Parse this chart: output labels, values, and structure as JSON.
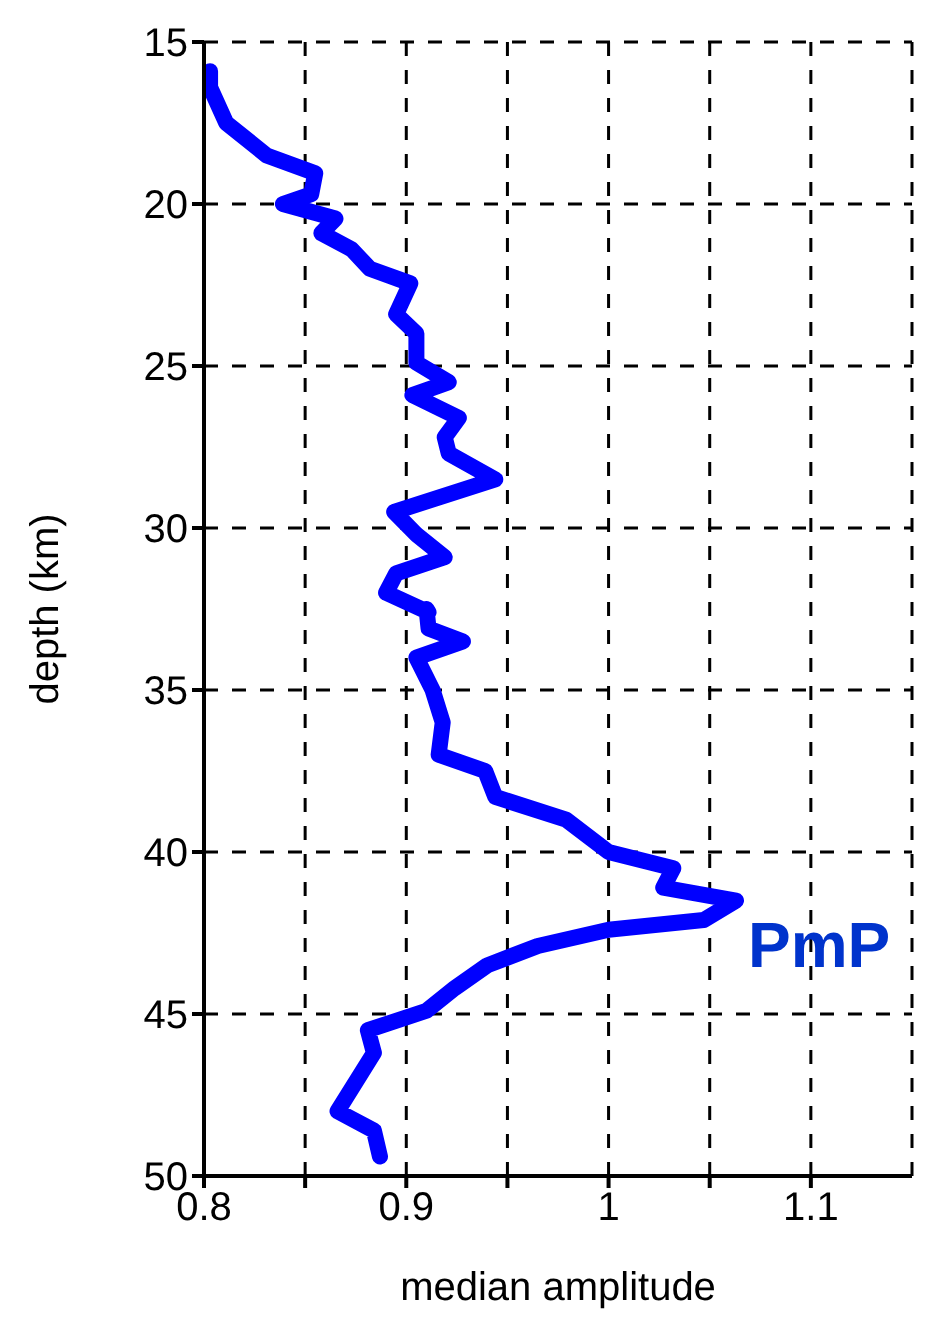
{
  "chart_data": {
    "type": "line",
    "xlabel": "median amplitude",
    "ylabel": "depth (km)",
    "xlim": [
      0.8,
      1.15
    ],
    "xticks": [
      0.8,
      {
        "value": 0.85,
        "label": null
      },
      0.9,
      {
        "value": 0.95,
        "label": null
      },
      1,
      {
        "value": 1.05,
        "label": null
      },
      1.1
    ],
    "ylim": [
      50,
      15
    ],
    "yticks": [
      15,
      20,
      25,
      30,
      35,
      40,
      45,
      50
    ],
    "grid": true,
    "line_style": "solid",
    "marker": "none",
    "annotations": [
      {
        "text": "PmP",
        "x": 1.063,
        "y": 41.5
      }
    ],
    "series": [
      {
        "color": "#0000ff",
        "x": [
          0.803,
          0.803,
          0.811,
          0.831,
          0.855,
          0.853,
          0.839,
          0.865,
          0.858,
          0.873,
          0.882,
          0.902,
          0.895,
          0.905,
          0.905,
          0.921,
          0.903,
          0.926,
          0.919,
          0.921,
          0.944,
          0.894,
          0.905,
          0.919,
          0.895,
          0.89,
          0.911,
          0.91,
          0.911,
          0.928,
          0.905,
          0.913,
          0.918,
          0.916,
          0.939,
          0.944,
          0.979,
          1.0,
          1.032,
          1.027,
          1.063,
          1.047,
          1.0,
          0.965,
          0.94,
          0.924,
          0.91,
          0.881,
          0.884,
          0.866,
          0.884,
          0.887
        ],
        "values": [
          15.9,
          16.4,
          17.5,
          18.5,
          19.05,
          19.7,
          20.0,
          20.45,
          20.9,
          21.4,
          22.0,
          22.45,
          23.4,
          24.0,
          24.9,
          25.5,
          25.9,
          26.6,
          27.2,
          27.7,
          28.5,
          29.5,
          30.2,
          30.9,
          31.4,
          32.0,
          32.6,
          32.5,
          33.1,
          33.5,
          34.0,
          35.0,
          36.0,
          37.0,
          37.5,
          38.3,
          39.0,
          40.0,
          40.5,
          41.1,
          41.5,
          42.1,
          42.4,
          42.9,
          43.5,
          44.2,
          44.9,
          45.5,
          46.2,
          48.0,
          48.6,
          49.4
        ]
      }
    ]
  }
}
